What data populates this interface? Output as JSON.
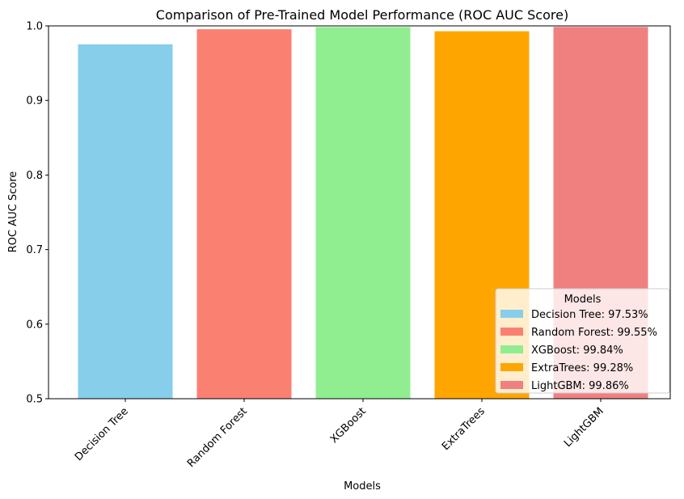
{
  "chart_data": {
    "type": "bar",
    "title": "Comparison of Pre-Trained Model Performance (ROC AUC Score)",
    "xlabel": "Models",
    "ylabel": "ROC AUC Score",
    "ylim": [
      0.5,
      1.0
    ],
    "yticks": [
      "0.5",
      "0.6",
      "0.7",
      "0.8",
      "0.9",
      "1.0"
    ],
    "categories": [
      "Decision Tree",
      "Random Forest",
      "XGBoost",
      "ExtraTrees",
      "LightGBM"
    ],
    "values": [
      0.9753,
      0.9955,
      0.9984,
      0.9928,
      0.9986
    ],
    "colors": [
      "#87ceeb",
      "#fa8072",
      "#90ee90",
      "#ffa500",
      "#f08080"
    ],
    "grid": false,
    "legend": {
      "title": "Models",
      "position": "lower-right",
      "entries": [
        "Decision Tree: 97.53%",
        "Random Forest: 99.55%",
        "XGBoost: 99.84%",
        "ExtraTrees: 99.28%",
        "LightGBM: 99.86%"
      ]
    }
  }
}
